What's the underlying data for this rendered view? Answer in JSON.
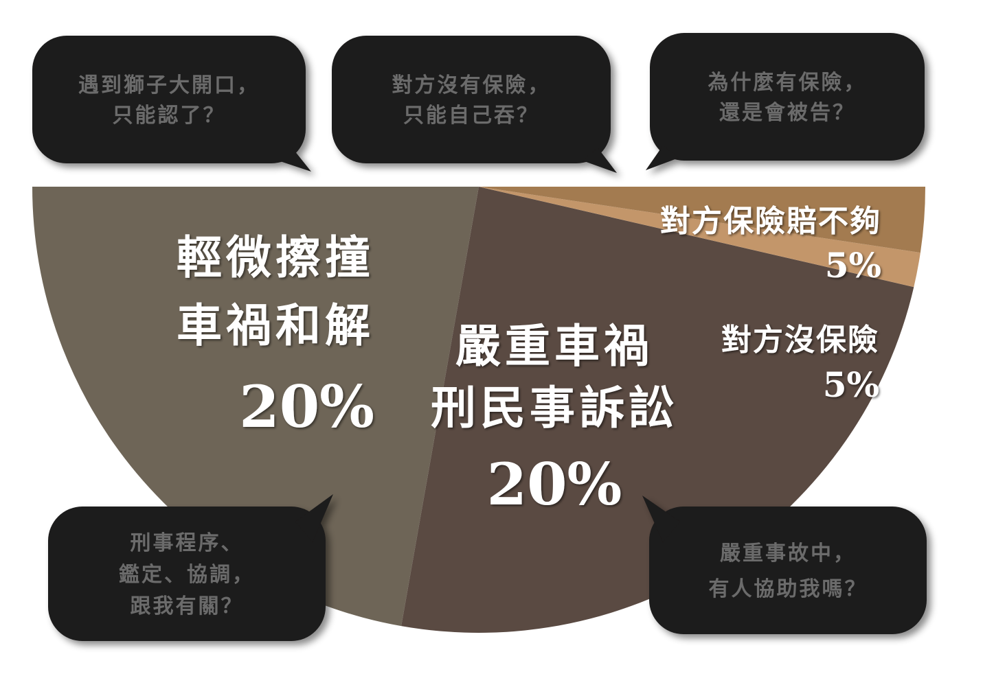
{
  "chart_data": {
    "type": "pie",
    "slices": [
      {
        "label_lines": [
          "輕微擦撞",
          "車禍和解"
        ],
        "value_label": "20%",
        "value": 20,
        "color": "#6e6557"
      },
      {
        "label_lines": [
          "嚴重車禍",
          "刑民事訴訟"
        ],
        "value_label": "20%",
        "value": 20,
        "color": "#5a4a42"
      },
      {
        "label_lines": [
          "對方沒保險"
        ],
        "value_label": "5%",
        "value": 5,
        "color": "#c3966a"
      },
      {
        "label_lines": [
          "對方保險賠不夠"
        ],
        "value_label": "5%",
        "value": 5,
        "color": "#a37b50"
      }
    ]
  },
  "bubbles": [
    {
      "lines": [
        "遇到獅子大開口，",
        "只能認了？"
      ]
    },
    {
      "lines": [
        "對方沒有保險，",
        "只能自己吞？"
      ]
    },
    {
      "lines": [
        "為什麼有保險，",
        "還是會被告？"
      ]
    },
    {
      "lines": [
        "刑事程序、",
        "鑑定、協調，",
        "跟我有關？"
      ]
    },
    {
      "lines": [
        "嚴重事故中，",
        "有人協助我嗎？"
      ]
    }
  ],
  "colors": {
    "bubble_fill": "#1b1a1a",
    "bubble_text": "#6b6b6b",
    "label_text": "#ffffff"
  }
}
